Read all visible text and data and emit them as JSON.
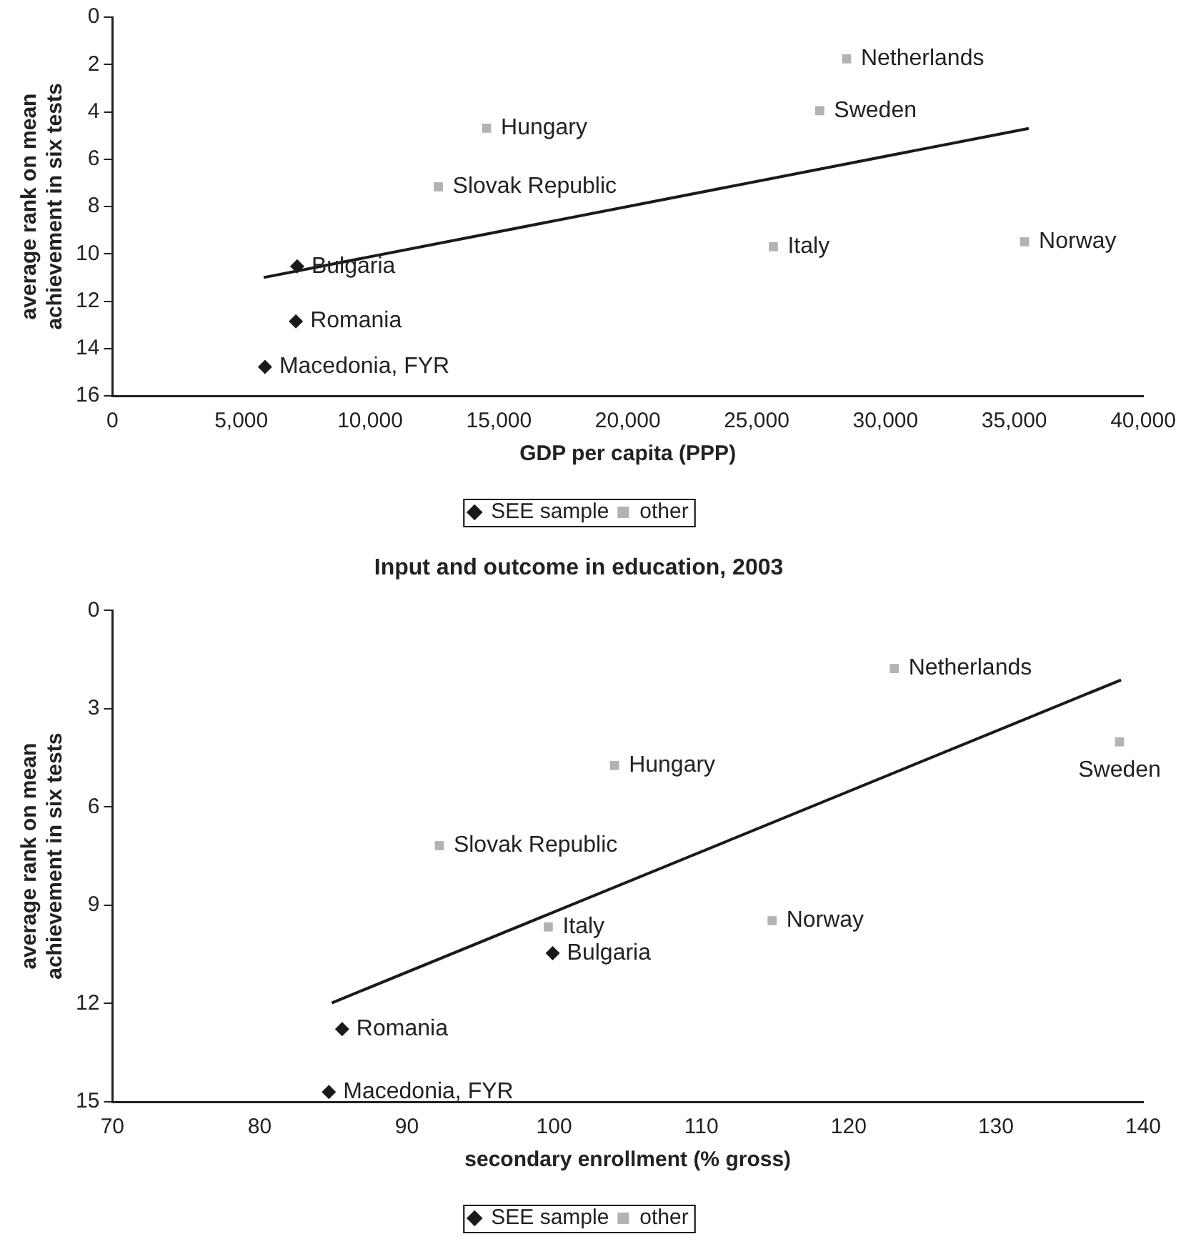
{
  "chart_data": [
    {
      "type": "scatter",
      "xlabel": "GDP per capita (PPP)",
      "ylabel": "average rank on mean achievement in six tests",
      "xlim": [
        0,
        40000
      ],
      "xticks": [
        0,
        {
          "value": 5000,
          "label": "5,000"
        },
        {
          "value": 10000,
          "label": "10,000"
        },
        {
          "value": 15000,
          "label": "15,000"
        },
        {
          "value": 20000,
          "label": "20,000"
        },
        {
          "value": 25000,
          "label": "25,000"
        },
        {
          "value": 30000,
          "label": "30,000"
        },
        {
          "value": 35000,
          "label": "35,000"
        },
        {
          "value": 40000,
          "label": "40,000"
        }
      ],
      "ylim": [
        16,
        0
      ],
      "yticks": [
        0,
        2,
        4,
        6,
        8,
        10,
        12,
        14,
        16
      ],
      "grid": false,
      "legend": "bottom",
      "series": [
        {
          "name": "SEE sample",
          "color": "#1a1a1a",
          "marker": "diamond",
          "x": [
            7170,
            7120,
            5920
          ],
          "values": [
            10.53,
            12.85,
            14.78
          ]
        },
        {
          "name": "other",
          "color": "#b3b3b3",
          "marker": "square",
          "x": [
            12650,
            14520,
            28490,
            27450,
            25650,
            35400
          ],
          "values": [
            7.17,
            4.69,
            1.76,
            3.95,
            9.7,
            9.49
          ]
        },
        {
          "type": "line",
          "color": "#1a1a1a",
          "marker": "none",
          "x": [
            5870,
            35560
          ],
          "values": [
            11.0,
            4.7
          ]
        }
      ],
      "annotations": [
        {
          "text": "Bulgaria",
          "x": 7170,
          "y": 10.53
        },
        {
          "text": "Romania",
          "x": 7120,
          "y": 12.85
        },
        {
          "text": "Macedonia, FYR",
          "x": 5920,
          "y": 14.78
        },
        {
          "text": "Slovak Republic",
          "x": 12650,
          "y": 7.17
        },
        {
          "text": "Hungary",
          "x": 14520,
          "y": 4.69
        },
        {
          "text": "Netherlands",
          "x": 28490,
          "y": 1.76
        },
        {
          "text": "Sweden",
          "x": 27450,
          "y": 3.95
        },
        {
          "text": "Italy",
          "x": 25650,
          "y": 9.7
        },
        {
          "text": "Norway",
          "x": 35400,
          "y": 9.49
        }
      ]
    },
    {
      "type": "scatter",
      "title": "Input and outcome in education, 2003",
      "xlabel": "secondary enrollment (% gross)",
      "ylabel": "average rank on mean achievement in six tests",
      "xlim": [
        70,
        140
      ],
      "xticks": [
        70,
        80,
        90,
        100,
        110,
        120,
        130,
        140
      ],
      "ylim": [
        15,
        0
      ],
      "yticks": [
        0,
        3,
        6,
        9,
        12,
        15
      ],
      "grid": false,
      "legend": "bottom",
      "series": [
        {
          "name": "SEE sample",
          "color": "#1a1a1a",
          "marker": "diamond",
          "x": [
            99.9,
            85.6,
            84.7
          ],
          "values": [
            10.46,
            12.78,
            14.7
          ]
        },
        {
          "name": "other",
          "color": "#b3b3b3",
          "marker": "square",
          "x": [
            92.2,
            104.1,
            123.1,
            138.4,
            99.6,
            114.8
          ],
          "values": [
            7.18,
            4.73,
            1.77,
            4.01,
            9.66,
            9.47
          ]
        },
        {
          "type": "line",
          "color": "#1a1a1a",
          "marker": "none",
          "x": [
            84.9,
            138.5
          ],
          "values": [
            11.98,
            2.12
          ]
        }
      ],
      "annotations": [
        {
          "text": "Bulgaria",
          "x": 99.9,
          "y": 10.46
        },
        {
          "text": "Romania",
          "x": 85.6,
          "y": 12.78
        },
        {
          "text": "Macedonia, FYR",
          "x": 84.7,
          "y": 14.7
        },
        {
          "text": "Slovak Republic",
          "x": 92.2,
          "y": 7.18
        },
        {
          "text": "Hungary",
          "x": 104.1,
          "y": 4.73
        },
        {
          "text": "Netherlands",
          "x": 123.1,
          "y": 1.77
        },
        {
          "text": "Sweden",
          "x": 138.4,
          "y": 4.01
        },
        {
          "text": "Italy",
          "x": 99.6,
          "y": 9.66
        },
        {
          "text": "Norway",
          "x": 114.8,
          "y": 9.47
        }
      ]
    }
  ]
}
